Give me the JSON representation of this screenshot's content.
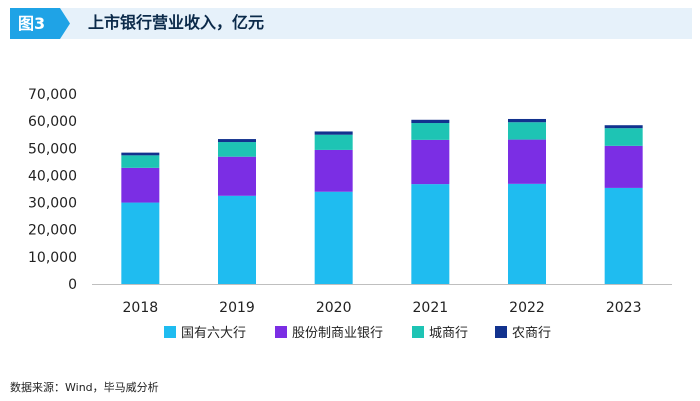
{
  "figure": {
    "badge": "图3",
    "title": "上市银行营业收入，亿元",
    "source": "数据来源：Wind，毕马威分析"
  },
  "colors": {
    "header_bg": "#e6f1fa",
    "badge_bg": "#1fa3e6",
    "series": [
      "#1fbcf0",
      "#7b2ee4",
      "#1ec4b4",
      "#12328e"
    ]
  },
  "chart_data": {
    "type": "bar",
    "stacked": true,
    "categories": [
      "2018",
      "2019",
      "2020",
      "2021",
      "2022",
      "2023"
    ],
    "series": [
      {
        "name": "国有六大行",
        "values": [
          30000,
          32500,
          34000,
          36800,
          36900,
          35400
        ]
      },
      {
        "name": "股份制商业银行",
        "values": [
          12800,
          14400,
          15400,
          16300,
          16300,
          15500
        ]
      },
      {
        "name": "城商行",
        "values": [
          4600,
          5400,
          5600,
          6200,
          6400,
          6500
        ]
      },
      {
        "name": "农商行",
        "values": [
          1000,
          1100,
          1200,
          1200,
          1200,
          1100
        ]
      }
    ],
    "ylim": [
      0,
      70000
    ],
    "yticks": [
      "0",
      "10,000",
      "20,000",
      "30,000",
      "40,000",
      "50,000",
      "60,000",
      "70,000"
    ],
    "legend_position": "bottom",
    "grid": false,
    "title": "上市银行营业收入，亿元",
    "xlabel": "",
    "ylabel": ""
  }
}
